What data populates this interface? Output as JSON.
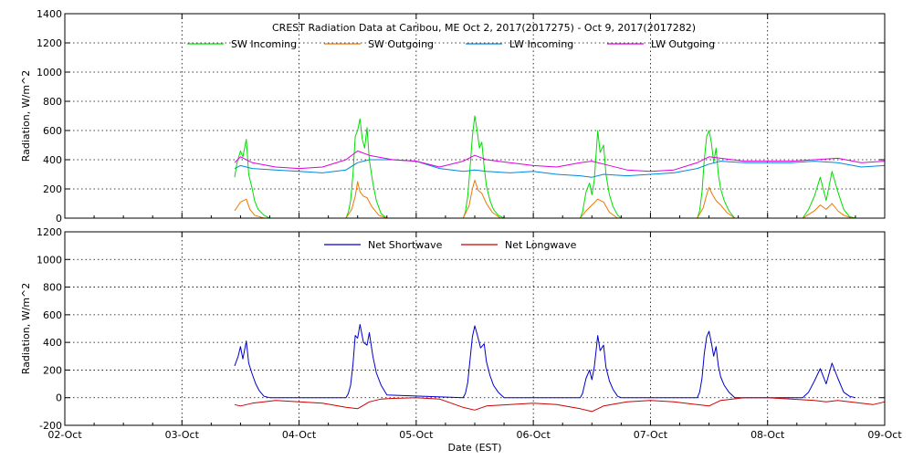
{
  "chart_data": [
    {
      "type": "line",
      "title": "CREST Radiation Data at Caribou, ME   Oct  2, 2017(2017275) - Oct  9, 2017(2017282)",
      "ylabel": "Radiation, W/m^2",
      "xlabel": "",
      "ylim": [
        0,
        1400
      ],
      "yticks": [
        0,
        200,
        400,
        600,
        800,
        1000,
        1200,
        1400
      ],
      "xlim": [
        0,
        7
      ],
      "xticks": [
        "02-Oct",
        "03-Oct",
        "04-Oct",
        "05-Oct",
        "06-Oct",
        "07-Oct",
        "08-Oct",
        "09-Oct"
      ],
      "grid": true,
      "legend_position": "top-center",
      "series": [
        {
          "name": "SW Incoming",
          "color": "#00dd00",
          "x": [
            1.45,
            1.47,
            1.5,
            1.52,
            1.55,
            1.57,
            1.6,
            1.62,
            1.65,
            1.7,
            1.75,
            2.4,
            2.42,
            2.44,
            2.46,
            2.48,
            2.5,
            2.52,
            2.54,
            2.56,
            2.58,
            2.6,
            2.63,
            2.66,
            2.7,
            2.75,
            3.4,
            3.42,
            3.44,
            3.46,
            3.48,
            3.5,
            3.52,
            3.54,
            3.56,
            3.58,
            3.6,
            3.63,
            3.66,
            3.7,
            3.75,
            4.4,
            4.42,
            4.45,
            4.48,
            4.5,
            4.52,
            4.55,
            4.57,
            4.6,
            4.62,
            4.65,
            4.68,
            4.72,
            4.75,
            5.4,
            5.42,
            5.44,
            5.46,
            5.48,
            5.5,
            5.52,
            5.54,
            5.56,
            5.58,
            5.6,
            5.63,
            5.67,
            5.72,
            6.3,
            6.35,
            6.4,
            6.45,
            6.5,
            6.55,
            6.6,
            6.65,
            6.7,
            6.75
          ],
          "values": [
            280,
            380,
            460,
            420,
            540,
            300,
            200,
            120,
            60,
            20,
            0,
            0,
            40,
            120,
            300,
            560,
            600,
            680,
            540,
            480,
            620,
            400,
            240,
            120,
            30,
            0,
            0,
            40,
            150,
            350,
            560,
            700,
            600,
            480,
            520,
            350,
            220,
            120,
            60,
            20,
            0,
            0,
            40,
            180,
            240,
            160,
            260,
            600,
            450,
            500,
            300,
            160,
            80,
            20,
            0,
            0,
            50,
            180,
            400,
            560,
            600,
            520,
            380,
            480,
            300,
            200,
            120,
            50,
            0,
            0,
            60,
            150,
            280,
            120,
            320,
            180,
            60,
            10,
            0
          ]
        },
        {
          "name": "SW Outgoing",
          "color": "#ee7700",
          "x": [
            1.45,
            1.5,
            1.55,
            1.58,
            1.62,
            1.7,
            2.4,
            2.45,
            2.48,
            2.5,
            2.52,
            2.55,
            2.58,
            2.62,
            2.68,
            2.75,
            3.4,
            3.45,
            3.48,
            3.5,
            3.53,
            3.56,
            3.6,
            3.65,
            3.72,
            4.4,
            4.45,
            4.5,
            4.55,
            4.6,
            4.65,
            4.72,
            5.4,
            5.45,
            5.48,
            5.5,
            5.53,
            5.56,
            5.6,
            5.65,
            5.72,
            6.3,
            6.4,
            6.45,
            6.5,
            6.55,
            6.6,
            6.65,
            6.72
          ],
          "values": [
            50,
            110,
            130,
            60,
            20,
            0,
            0,
            60,
            150,
            250,
            180,
            150,
            140,
            80,
            20,
            0,
            0,
            80,
            200,
            260,
            190,
            170,
            100,
            40,
            0,
            0,
            50,
            90,
            130,
            110,
            40,
            0,
            0,
            70,
            160,
            210,
            160,
            120,
            90,
            40,
            0,
            0,
            50,
            90,
            60,
            100,
            50,
            20,
            0
          ]
        },
        {
          "name": "LW Incoming",
          "color": "#0088dd",
          "x": [
            1.45,
            1.5,
            1.6,
            1.8,
            2.0,
            2.2,
            2.4,
            2.5,
            2.6,
            2.8,
            3.0,
            3.2,
            3.4,
            3.5,
            3.6,
            3.8,
            4.0,
            4.2,
            4.4,
            4.5,
            4.6,
            4.8,
            5.0,
            5.2,
            5.4,
            5.5,
            5.6,
            5.8,
            6.0,
            6.2,
            6.4,
            6.6,
            6.8,
            7.0
          ],
          "values": [
            340,
            360,
            340,
            330,
            320,
            310,
            330,
            380,
            400,
            400,
            390,
            340,
            320,
            330,
            320,
            310,
            320,
            300,
            290,
            280,
            300,
            290,
            300,
            310,
            340,
            370,
            390,
            380,
            380,
            380,
            390,
            380,
            350,
            360
          ]
        },
        {
          "name": "LW Outgoing",
          "color": "#dd00dd",
          "x": [
            1.45,
            1.5,
            1.6,
            1.8,
            2.0,
            2.2,
            2.4,
            2.5,
            2.6,
            2.8,
            3.0,
            3.2,
            3.4,
            3.5,
            3.6,
            3.8,
            4.0,
            4.2,
            4.4,
            4.5,
            4.6,
            4.8,
            5.0,
            5.2,
            5.4,
            5.5,
            5.6,
            5.8,
            6.0,
            6.2,
            6.4,
            6.6,
            6.8,
            7.0
          ],
          "values": [
            380,
            420,
            380,
            350,
            340,
            350,
            400,
            460,
            430,
            400,
            390,
            350,
            390,
            430,
            400,
            380,
            360,
            350,
            380,
            390,
            370,
            330,
            320,
            330,
            380,
            420,
            410,
            390,
            390,
            390,
            400,
            410,
            380,
            390
          ]
        }
      ]
    },
    {
      "type": "line",
      "title": "",
      "ylabel": "Radiation, W/m^2",
      "xlabel": "Date (EST)",
      "ylim": [
        -200,
        1200
      ],
      "yticks": [
        -200,
        0,
        200,
        400,
        600,
        800,
        1000,
        1200
      ],
      "xlim": [
        0,
        7
      ],
      "xticks": [
        "02-Oct",
        "03-Oct",
        "04-Oct",
        "05-Oct",
        "06-Oct",
        "07-Oct",
        "08-Oct",
        "09-Oct"
      ],
      "grid": true,
      "legend_position": "top-center",
      "series": [
        {
          "name": "Net Shortwave",
          "color": "#0000cc",
          "x": [
            1.45,
            1.48,
            1.5,
            1.52,
            1.55,
            1.57,
            1.6,
            1.63,
            1.66,
            1.7,
            1.75,
            2.4,
            2.42,
            2.44,
            2.46,
            2.48,
            2.5,
            2.52,
            2.55,
            2.58,
            2.6,
            2.63,
            2.66,
            2.7,
            2.75,
            3.4,
            3.42,
            3.44,
            3.46,
            3.48,
            3.5,
            3.52,
            3.55,
            3.58,
            3.6,
            3.63,
            3.66,
            3.7,
            3.75,
            4.4,
            4.42,
            4.45,
            4.48,
            4.5,
            4.52,
            4.55,
            4.57,
            4.6,
            4.62,
            4.65,
            4.68,
            4.72,
            4.75,
            5.4,
            5.42,
            5.44,
            5.46,
            5.48,
            5.5,
            5.52,
            5.54,
            5.56,
            5.58,
            5.6,
            5.63,
            5.67,
            5.72,
            6.3,
            6.35,
            6.4,
            6.45,
            6.5,
            6.55,
            6.6,
            6.65,
            6.7,
            6.75
          ],
          "values": [
            230,
            300,
            370,
            280,
            410,
            250,
            170,
            100,
            50,
            10,
            0,
            0,
            30,
            90,
            240,
            450,
            430,
            530,
            400,
            380,
            470,
            300,
            180,
            90,
            20,
            0,
            30,
            110,
            280,
            440,
            520,
            460,
            360,
            390,
            260,
            160,
            90,
            40,
            0,
            0,
            30,
            140,
            200,
            130,
            220,
            450,
            340,
            380,
            220,
            120,
            60,
            10,
            0,
            0,
            40,
            140,
            320,
            440,
            480,
            400,
            300,
            370,
            230,
            150,
            90,
            40,
            0,
            0,
            40,
            120,
            210,
            100,
            250,
            140,
            40,
            10,
            0
          ]
        },
        {
          "name": "Net Longwave",
          "color": "#cc0000",
          "x": [
            1.45,
            1.5,
            1.6,
            1.7,
            1.8,
            2.0,
            2.2,
            2.4,
            2.5,
            2.6,
            2.7,
            2.8,
            3.0,
            3.2,
            3.4,
            3.5,
            3.6,
            3.8,
            4.0,
            4.2,
            4.4,
            4.5,
            4.6,
            4.8,
            5.0,
            5.2,
            5.4,
            5.5,
            5.6,
            5.7,
            5.8,
            6.0,
            6.2,
            6.4,
            6.5,
            6.6,
            6.8,
            6.9,
            7.0
          ],
          "values": [
            -50,
            -60,
            -40,
            -30,
            -20,
            -30,
            -40,
            -70,
            -80,
            -30,
            -10,
            -5,
            0,
            -10,
            -70,
            -90,
            -60,
            -50,
            -40,
            -50,
            -80,
            -100,
            -60,
            -30,
            -20,
            -30,
            -50,
            -60,
            -20,
            -10,
            0,
            0,
            -10,
            -20,
            -30,
            -20,
            -40,
            -50,
            -30
          ]
        }
      ]
    }
  ]
}
